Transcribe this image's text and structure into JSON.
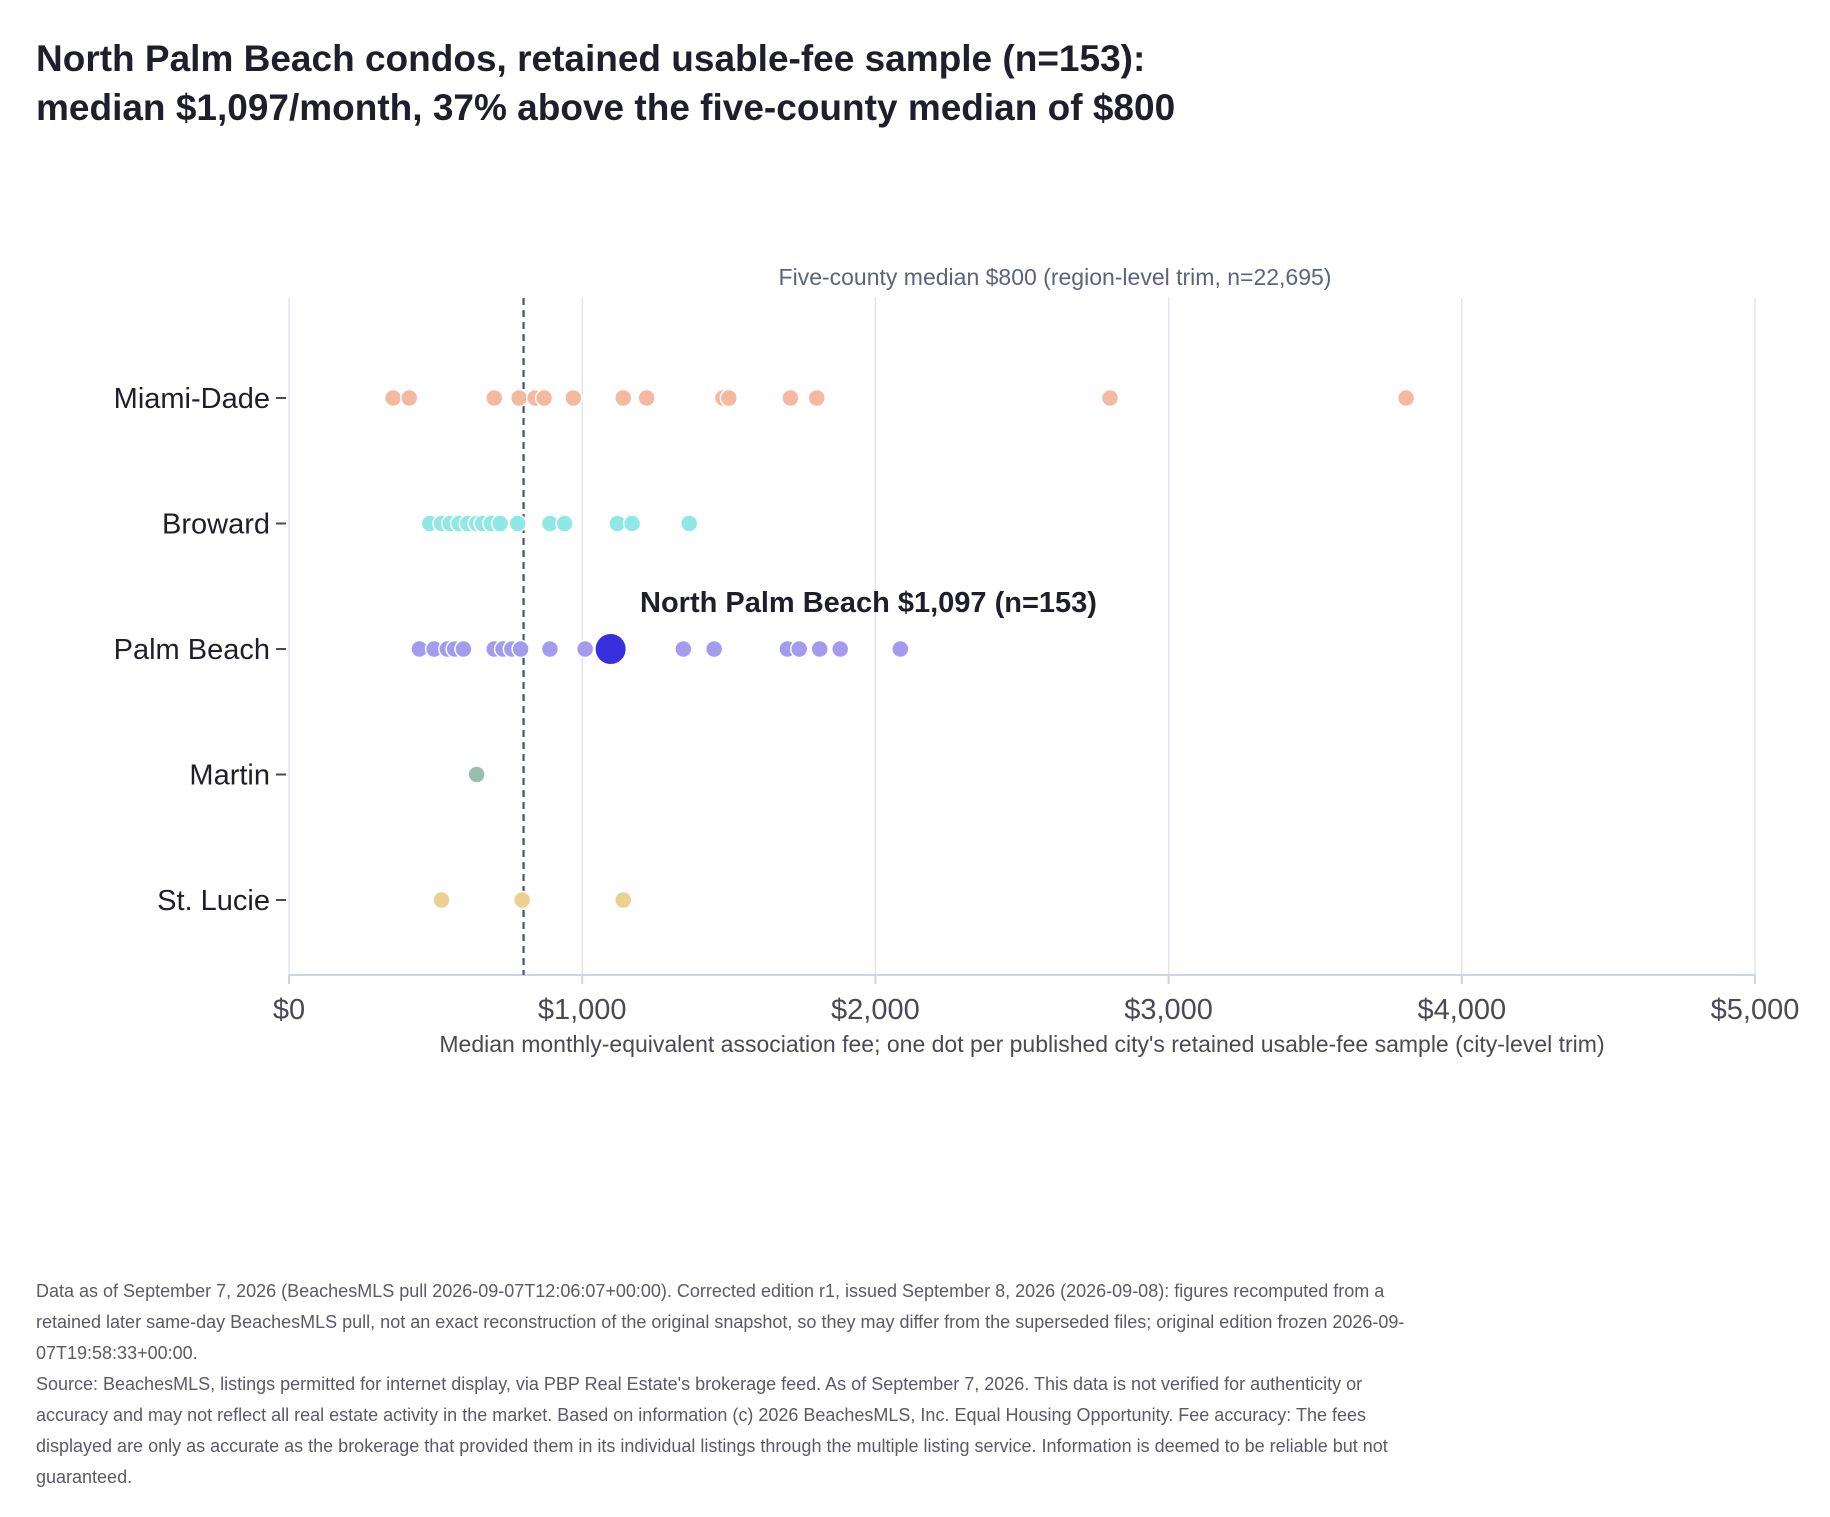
{
  "title": {
    "line1": "North Palm Beach condos, retained usable-fee sample (n=153):",
    "line2": "median $1,097/month, 37% above the five-county median of $800"
  },
  "colors": {
    "Miami-Dade": "#f5b9a0",
    "Broward": "#8fe8e5",
    "Palm Beach": "#a39cee",
    "Martin": "#98bfae",
    "St. Lucie": "#ebd08f",
    "highlight": "#3a2fdc",
    "reference_line": "#4a5568",
    "grid": "#e3e3ee",
    "axis": "#cfd3e6"
  },
  "chart_data": {
    "type": "scatter",
    "orientation": "horizontal-strip",
    "xlabel": "Median monthly-equivalent association fee; one dot per published city's retained usable-fee sample (city-level trim)",
    "x_ticks": [
      "$0",
      "$1,000",
      "$2,000",
      "$3,000",
      "$4,000",
      "$5,000"
    ],
    "x_tick_values": [
      0,
      1000,
      2000,
      3000,
      4000,
      5000
    ],
    "xlim": [
      0,
      5000
    ],
    "categories": [
      "Miami-Dade",
      "Broward",
      "Palm Beach",
      "Martin",
      "St. Lucie"
    ],
    "grid": true,
    "series": [
      {
        "name": "Miami-Dade",
        "values": [
          355,
          410,
          700,
          785,
          840,
          870,
          970,
          1140,
          1220,
          1480,
          1500,
          1710,
          1800,
          2800,
          3810
        ]
      },
      {
        "name": "Broward",
        "values": [
          480,
          520,
          550,
          580,
          610,
          640,
          660,
          690,
          720,
          780,
          890,
          940,
          1120,
          1170,
          1365
        ]
      },
      {
        "name": "Palm Beach",
        "values": [
          445,
          495,
          540,
          565,
          595,
          700,
          730,
          760,
          790,
          890,
          1010,
          1345,
          1450,
          1700,
          1740,
          1810,
          1880,
          2085
        ]
      },
      {
        "name": "Martin",
        "values": [
          640
        ]
      },
      {
        "name": "St. Lucie",
        "values": [
          520,
          795,
          1140
        ]
      }
    ],
    "highlight": {
      "category": "Palm Beach",
      "value": 1097,
      "label": "North Palm Beach $1,097 (n=153)"
    },
    "reference_line": {
      "value": 800,
      "label": "Five-county median $800 (region-level trim, n=22,695)"
    }
  },
  "footer": {
    "note": "Data as of September 7, 2026 (BeachesMLS pull 2026-09-07T12:06:07+00:00). Corrected edition r1, issued September 8, 2026 (2026-09-08): figures recomputed from a retained later same-day BeachesMLS pull, not an exact reconstruction of the original snapshot, so they may differ from the superseded files; original edition frozen 2026-09-07T19:58:33+00:00.",
    "source": "Source: BeachesMLS, listings permitted for internet display, via PBP Real Estate's brokerage feed. As of September 7, 2026. This data is not verified for authenticity or accuracy and may not reflect all real estate activity in the market. Based on information (c) 2026 BeachesMLS, Inc. Equal Housing Opportunity. Fee accuracy: The fees displayed are only as accurate as the brokerage that provided them in its individual listings through the multiple listing service. Information is deemed to be reliable but not guaranteed."
  }
}
